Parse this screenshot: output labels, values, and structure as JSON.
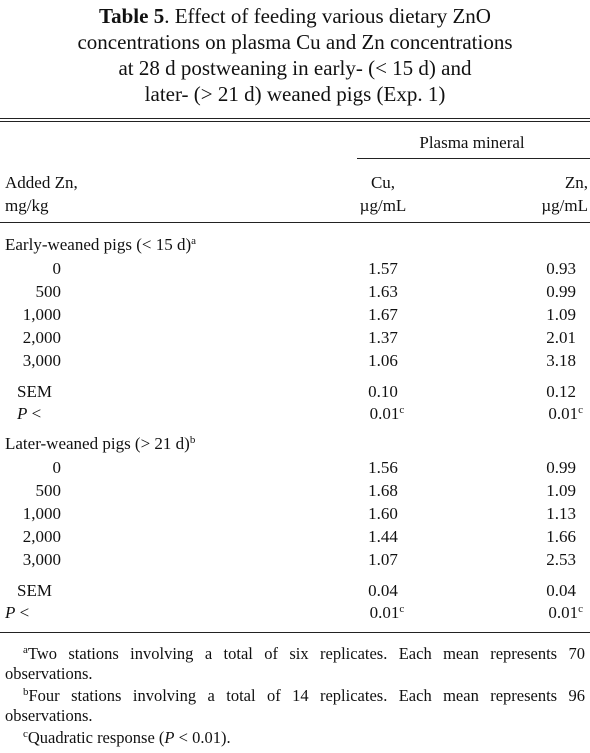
{
  "table": {
    "title": {
      "label": "Table 5",
      "lines": [
        ". Effect of feeding various dietary ZnO",
        "concentrations on plasma Cu and Zn concentrations",
        "at 28 d postweaning in early- (< 15 d) and",
        "later- (> 21 d) weaned pigs (Exp. 1)"
      ]
    },
    "spanner": "Plasma mineral",
    "columns": [
      [
        "Added Zn,",
        "mg/kg"
      ],
      [
        "Cu,",
        "µg/mL"
      ],
      [
        "Zn,",
        "µg/mL"
      ]
    ],
    "groups": [
      {
        "label": "Early-weaned pigs (< 15 d)",
        "note": "a",
        "rows": [
          [
            "0",
            "1.57",
            "0.93"
          ],
          [
            "500",
            "1.63",
            "0.99"
          ],
          [
            "1,000",
            "1.67",
            "1.09"
          ],
          [
            "2,000",
            "1.37",
            "2.01"
          ],
          [
            "3,000",
            "1.06",
            "3.18"
          ]
        ],
        "sem": [
          "SEM",
          "0.10",
          "0.12"
        ],
        "p": {
          "italic": "P",
          "label": "<",
          "cu": "0.01",
          "cu_note": "c",
          "zn": "0.01",
          "zn_note": "c"
        }
      },
      {
        "label": "Later-weaned pigs (> 21 d)",
        "note": "b",
        "rows": [
          [
            "0",
            "1.56",
            "0.99"
          ],
          [
            "500",
            "1.68",
            "1.09"
          ],
          [
            "1,000",
            "1.60",
            "1.13"
          ],
          [
            "2,000",
            "1.44",
            "1.66"
          ],
          [
            "3,000",
            "1.07",
            "2.53"
          ]
        ],
        "sem": [
          "SEM",
          "0.04",
          "0.04"
        ],
        "p": {
          "italic": "P",
          "label": "<",
          "cu": "0.01",
          "cu_note": "c",
          "zn": "0.01",
          "zn_note": "c"
        }
      }
    ],
    "footnotes": [
      {
        "mark": "a",
        "text": "Two stations involving a total of six replicates. Each mean represents 70 observations."
      },
      {
        "mark": "b",
        "text": "Four stations involving a total of 14 replicates. Each mean represents 96 observations."
      },
      {
        "mark": "c",
        "text": "Quadratic response (",
        "italic": "P",
        "text_end": " < 0.01)."
      }
    ]
  }
}
